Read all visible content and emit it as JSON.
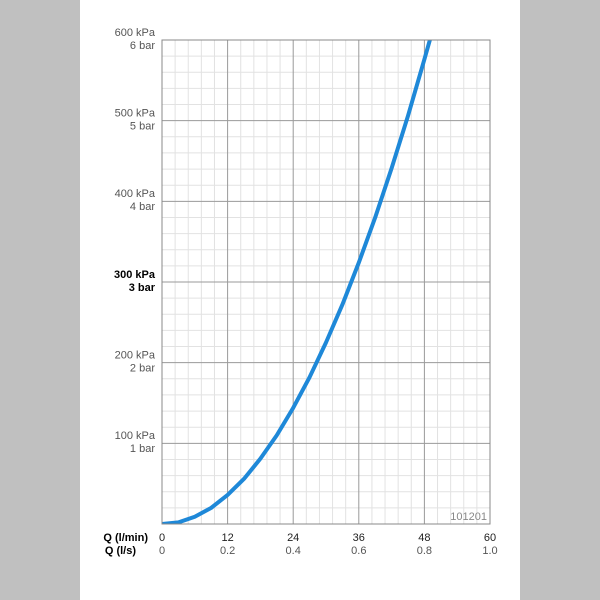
{
  "chart_data": {
    "type": "line",
    "xlabel": "Q (l/min)",
    "x2label": "Q (l/s)",
    "annotation": "101201",
    "x": [
      0,
      3,
      6,
      9,
      12,
      15,
      18,
      21,
      24,
      27,
      30,
      33,
      36,
      39,
      42,
      45,
      48,
      49
    ],
    "values": [
      0,
      2,
      9,
      20,
      36,
      56,
      81,
      110,
      144,
      182,
      225,
      272,
      324,
      380,
      441,
      506,
      576,
      600
    ],
    "color": "#1e88d8",
    "xlim": [
      0,
      60
    ],
    "xticks": [
      0,
      12,
      24,
      36,
      48,
      60
    ],
    "x2lim": [
      0,
      1
    ],
    "x2ticks": [
      0,
      0.2,
      0.4,
      0.6,
      0.8,
      {
        "value": 1,
        "label": "1.0"
      }
    ],
    "ylim": [
      0,
      600
    ],
    "yticks": [
      {
        "value": 100,
        "label": "100 kPa"
      },
      {
        "value": 200,
        "label": "200 kPa"
      },
      {
        "value": 300,
        "label": "300 kPa"
      },
      {
        "value": 400,
        "label": "400 kPa"
      },
      {
        "value": 500,
        "label": "500 kPa"
      },
      {
        "value": 600,
        "label": "600 kPa"
      }
    ],
    "y2lim": [
      0,
      6
    ],
    "y2ticks": [
      {
        "value": 1,
        "label": "1 bar"
      },
      {
        "value": 2,
        "label": "2 bar"
      },
      {
        "value": 3,
        "label": "3 bar"
      },
      {
        "value": 4,
        "label": "4 bar"
      },
      {
        "value": 5,
        "label": "5 bar"
      },
      {
        "value": 6,
        "label": "6 bar"
      }
    ],
    "highlight_ytick": 300,
    "grid": true,
    "minor_grid": true
  }
}
